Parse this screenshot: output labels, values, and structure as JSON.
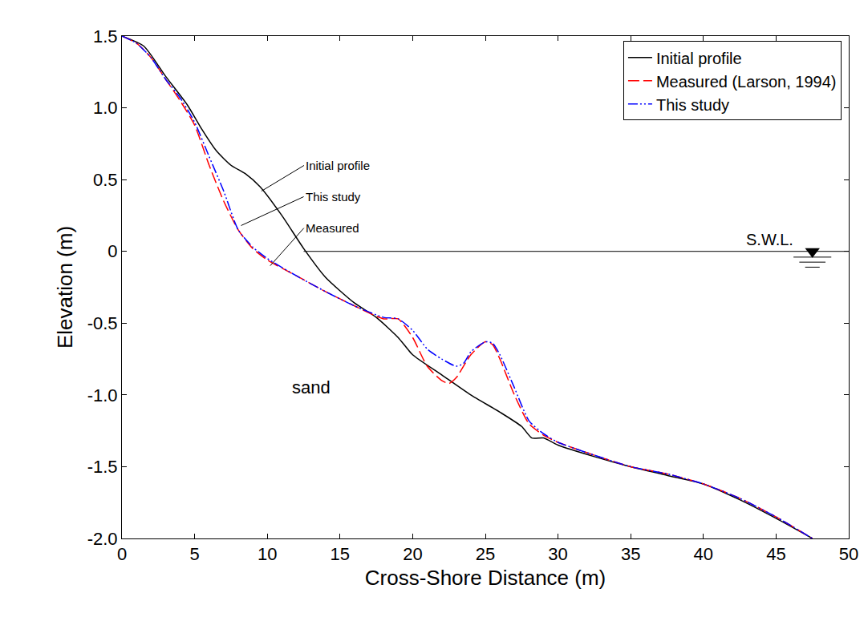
{
  "chart_data": {
    "type": "line",
    "x_label": "Cross-Shore Distance (m)",
    "y_label": "Elevation (m)",
    "xlim": [
      0,
      50
    ],
    "xticks": [
      0,
      5,
      10,
      15,
      20,
      25,
      30,
      35,
      40,
      45,
      50
    ],
    "ylim": [
      -2.0,
      1.5
    ],
    "yticks": [
      {
        "value": -2.0,
        "label": "-2.0"
      },
      {
        "value": -1.5,
        "label": "-1.5"
      },
      {
        "value": -1.0,
        "label": "-1.0"
      },
      {
        "value": -0.5,
        "label": "-0.5"
      },
      0,
      {
        "value": 0.5,
        "label": "0.5"
      },
      {
        "value": 1.0,
        "label": "1.0"
      },
      {
        "value": 1.5,
        "label": "1.5"
      }
    ],
    "grid": false,
    "legend": "top-right",
    "series": [
      {
        "name": "Initial profile",
        "color": "#000000",
        "line_style": "solid",
        "x": [
          0,
          1.5,
          3,
          4.5,
          5.5,
          6.5,
          7.5,
          8.5,
          9.5,
          11,
          12.5,
          14,
          16,
          17.5,
          19,
          20,
          22,
          24,
          26,
          27.5,
          28.2,
          29,
          30,
          32.5,
          35,
          37.5,
          40,
          42.5,
          45,
          47.5
        ],
        "values": [
          1.5,
          1.43,
          1.22,
          1.02,
          0.85,
          0.7,
          0.6,
          0.54,
          0.45,
          0.25,
          0.02,
          -0.18,
          -0.36,
          -0.46,
          -0.6,
          -0.72,
          -0.86,
          -1.0,
          -1.12,
          -1.22,
          -1.3,
          -1.3,
          -1.35,
          -1.43,
          -1.5,
          -1.56,
          -1.62,
          -1.73,
          -1.86,
          -2.0
        ]
      },
      {
        "name": "Measured (Larson, 1994)",
        "color": "#ff0000",
        "line_style": "dash",
        "x": [
          0,
          1,
          2,
          3,
          4,
          5,
          6,
          7,
          8,
          9,
          10,
          12,
          14,
          16,
          18,
          19,
          20,
          21,
          22,
          22.5,
          23,
          24,
          25,
          25.5,
          26,
          27,
          28,
          29,
          30,
          32.5,
          35,
          37.5,
          40,
          42.5,
          45,
          47.5
        ],
        "values": [
          1.5,
          1.45,
          1.35,
          1.2,
          1.05,
          0.88,
          0.6,
          0.35,
          0.15,
          0.02,
          -0.06,
          -0.17,
          -0.28,
          -0.38,
          -0.47,
          -0.47,
          -0.6,
          -0.8,
          -0.9,
          -0.92,
          -0.88,
          -0.72,
          -0.63,
          -0.65,
          -0.75,
          -1.0,
          -1.2,
          -1.28,
          -1.33,
          -1.42,
          -1.5,
          -1.55,
          -1.62,
          -1.72,
          -1.85,
          -2.0
        ]
      },
      {
        "name": "This study",
        "color": "#0000ff",
        "line_style": "dashdotdot",
        "x": [
          0,
          1,
          2,
          3,
          4,
          5,
          6,
          7,
          8,
          9,
          10,
          12,
          14,
          16,
          18,
          19,
          20,
          21,
          22,
          23,
          23.5,
          24,
          25,
          25.5,
          26,
          27,
          28,
          29,
          30,
          32.5,
          35,
          37.5,
          40,
          42.5,
          45,
          47.5
        ],
        "values": [
          1.5,
          1.45,
          1.35,
          1.2,
          1.07,
          0.9,
          0.66,
          0.42,
          0.15,
          0.03,
          -0.05,
          -0.17,
          -0.28,
          -0.38,
          -0.46,
          -0.47,
          -0.55,
          -0.68,
          -0.75,
          -0.8,
          -0.78,
          -0.7,
          -0.63,
          -0.64,
          -0.72,
          -0.95,
          -1.18,
          -1.27,
          -1.33,
          -1.42,
          -1.5,
          -1.55,
          -1.62,
          -1.72,
          -1.85,
          -2.0
        ]
      }
    ],
    "annotations": [
      {
        "text": "Initial profile",
        "x": 9.6,
        "y": 0.42
      },
      {
        "text": "This study",
        "x": 8.2,
        "y": 0.18
      },
      {
        "text": "Measured",
        "x": 10.2,
        "y": -0.1
      },
      {
        "text": "sand",
        "x": 13,
        "y": -0.95
      }
    ],
    "water_level": {
      "label": "S.W.L.",
      "y": 0,
      "x": [
        12.5,
        50
      ],
      "marker_x": 47.5
    }
  }
}
